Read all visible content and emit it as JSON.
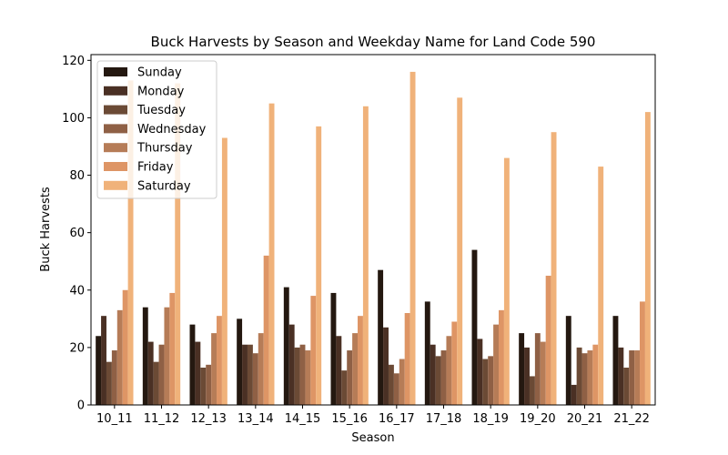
{
  "chart_data": {
    "type": "bar",
    "title": "Buck Harvests by Season and Weekday Name for Land Code 590",
    "xlabel": "Season",
    "ylabel": "Buck Harvests",
    "ylim": [
      0,
      122
    ],
    "yticks": [
      0,
      20,
      40,
      60,
      80,
      100,
      120
    ],
    "grid": false,
    "legend_position": "upper-left",
    "categories": [
      "10_11",
      "11_12",
      "12_13",
      "13_14",
      "14_15",
      "15_16",
      "16_17",
      "17_18",
      "18_19",
      "19_20",
      "20_21",
      "21_22"
    ],
    "series": [
      {
        "name": "Sunday",
        "color": "#241810",
        "values": [
          24,
          34,
          28,
          30,
          41,
          39,
          47,
          36,
          54,
          25,
          31,
          31
        ]
      },
      {
        "name": "Monday",
        "color": "#4a3024",
        "values": [
          31,
          22,
          22,
          21,
          28,
          24,
          27,
          21,
          23,
          20,
          7,
          20
        ]
      },
      {
        "name": "Tuesday",
        "color": "#6b4a35",
        "values": [
          15,
          15,
          13,
          21,
          20,
          12,
          14,
          17,
          16,
          10,
          20,
          13
        ]
      },
      {
        "name": "Wednesday",
        "color": "#8f6045",
        "values": [
          19,
          21,
          14,
          18,
          21,
          19,
          11,
          19,
          17,
          25,
          18,
          19
        ]
      },
      {
        "name": "Thursday",
        "color": "#b67c57",
        "values": [
          33,
          34,
          25,
          25,
          19,
          25,
          16,
          24,
          28,
          22,
          19,
          19
        ]
      },
      {
        "name": "Friday",
        "color": "#de9565",
        "values": [
          40,
          39,
          31,
          52,
          38,
          31,
          32,
          29,
          33,
          45,
          21,
          36
        ]
      },
      {
        "name": "Saturday",
        "color": "#f0b27a",
        "values": [
          113,
          112,
          93,
          105,
          97,
          104,
          116,
          107,
          86,
          95,
          83,
          102
        ]
      }
    ]
  }
}
